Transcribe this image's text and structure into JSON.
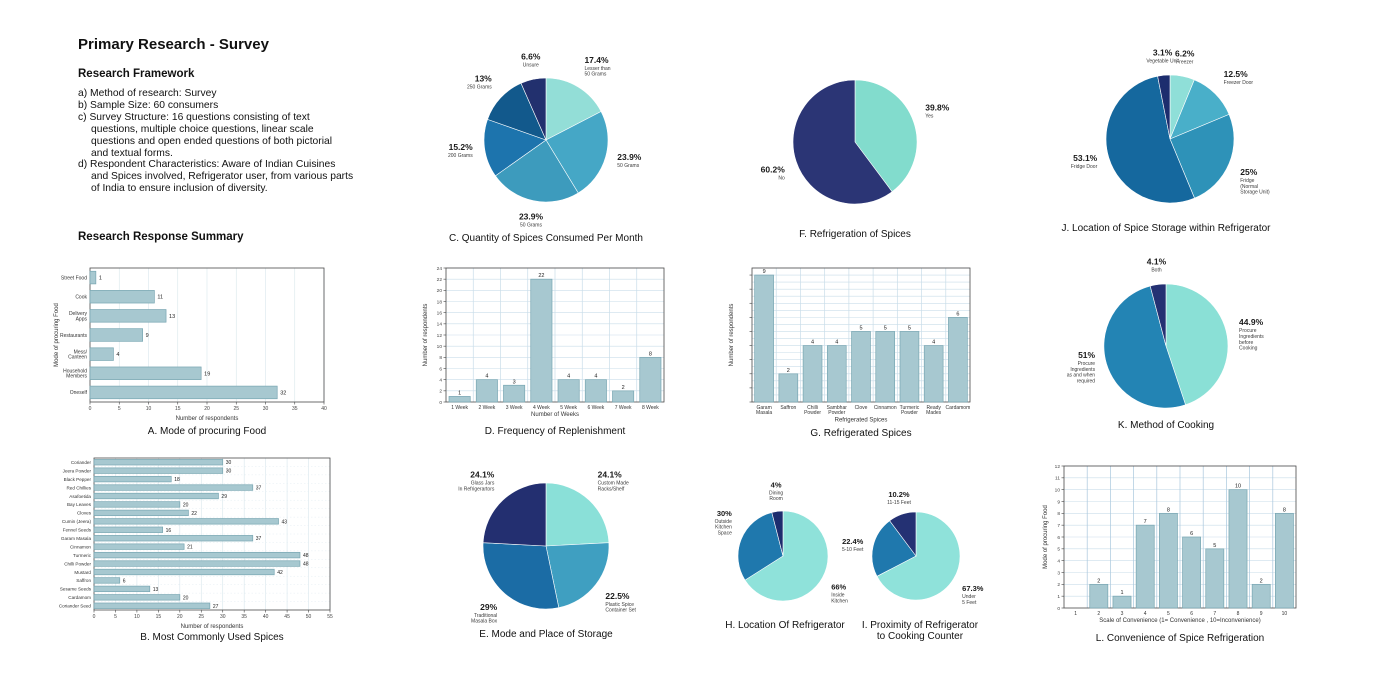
{
  "header": {
    "title": "Primary Research - Survey"
  },
  "framework": {
    "heading": "Research Framework",
    "lines": [
      "a) Method of research: Survey",
      "b) Sample Size: 60 consumers",
      "c) Survey Structure: 16 questions consisting of text",
      "questions, multiple choice questions, linear scale",
      "questions and open ended questions of both pictorial",
      "and textual forms.",
      "d) Respondent Characteristics: Aware of Indian Cuisines",
      "and Spices involved, Refrigerator user, from various parts",
      "of India to ensure inclusion of diversity."
    ]
  },
  "summary": {
    "heading": "Research Response Summary"
  },
  "palette": {
    "bar_fill": "#a7c8d0",
    "bar_stroke": "#78a6b2",
    "grid": "#c9dde9",
    "grid_strong": "#a9c7dd",
    "mint": "#8fdfd6",
    "teal": "#45a7c6",
    "blue": "#1d74ad",
    "navy": "#22306e"
  },
  "chart_data": [
    {
      "id": "C",
      "type": "pie",
      "title": "C. Quantity of Spices Consumed Per Month",
      "slices": [
        {
          "pct": 17.4,
          "pct_label": "17.4%",
          "label": "Lesser than\n50 Grams",
          "color": "#93ded7"
        },
        {
          "pct": 23.9,
          "pct_label": "23.9%",
          "label": "50 Grams",
          "color": "#45a7c6"
        },
        {
          "pct": 23.9,
          "pct_label": "23.9%",
          "label": "50 Grams",
          "color": "#3d9bbd"
        },
        {
          "pct": 15.2,
          "pct_label": "15.2%",
          "label": "200 Grams",
          "color": "#1d74ad"
        },
        {
          "pct": 13,
          "pct_label": "13%",
          "label": "250 Grams",
          "color": "#12598c"
        },
        {
          "pct": 6.6,
          "pct_label": "6.6%",
          "label": "Unsure",
          "color": "#22306e"
        }
      ]
    },
    {
      "id": "F",
      "type": "pie",
      "title": "F. Refrigeration of Spices",
      "slices": [
        {
          "pct": 39.8,
          "pct_label": "39.8%",
          "label": "Yes",
          "color": "#82dccd"
        },
        {
          "pct": 60.2,
          "pct_label": "60.2%",
          "label": "No",
          "color": "#2b3575"
        }
      ]
    },
    {
      "id": "J",
      "type": "pie",
      "title": "J. Location of Spice Storage within Refrigerator",
      "slices": [
        {
          "pct": 6.2,
          "pct_label": "6.2%",
          "label": "Freezer",
          "color": "#8fdfd8"
        },
        {
          "pct": 12.5,
          "pct_label": "12.5%",
          "label": "Freezer Door",
          "color": "#49afc9"
        },
        {
          "pct": 25,
          "pct_label": "25%",
          "label": "Fridge\n(Normal\nStorage Unit)",
          "color": "#2e92b8"
        },
        {
          "pct": 53.1,
          "pct_label": "53.1%",
          "label": "Fridge Door",
          "color": "#15689e"
        },
        {
          "pct": 3.1,
          "pct_label": "3.1%",
          "label": "Vegetable Unit",
          "color": "#1d2d6e"
        }
      ]
    },
    {
      "id": "K",
      "type": "pie",
      "title": "K. Method of Cooking",
      "slices": [
        {
          "pct": 44.9,
          "pct_label": "44.9%",
          "label": "Procure\nIngredients\nbefore\nCooking",
          "color": "#8ae0d6"
        },
        {
          "pct": 51,
          "pct_label": "51%",
          "label": "Procure\nIngredients\nas and when\nrequired",
          "color": "#2384b4"
        },
        {
          "pct": 4.1,
          "pct_label": "4.1%",
          "label": "Both",
          "color": "#243173"
        }
      ]
    },
    {
      "id": "E",
      "type": "pie",
      "title": "E. Mode and Place of Storage",
      "slices": [
        {
          "pct": 24.1,
          "pct_label": "24.1%",
          "label": "Custom Made\nRacks/Shelf",
          "color": "#8ae0d8"
        },
        {
          "pct": 22.5,
          "pct_label": "22.5%",
          "label": "Plastic Spice\nContainer Set",
          "color": "#3f9fc1"
        },
        {
          "pct": 29,
          "pct_label": "29%",
          "label": "Traditional\nMasala Box",
          "color": "#1b6ca5"
        },
        {
          "pct": 24.1,
          "pct_label": "24.1%",
          "label": "Glass Jars\nIn Refrigerartors",
          "color": "#232f70"
        }
      ]
    },
    {
      "id": "H",
      "type": "pie",
      "title": "H. Location Of Refrigerator",
      "slices": [
        {
          "pct": 66,
          "pct_label": "66%",
          "label": "Inside\nKitchen",
          "color": "#8fe2da"
        },
        {
          "pct": 30,
          "pct_label": "30%",
          "label": "Outside\nKitchen\nSpace",
          "color": "#1f78ad"
        },
        {
          "pct": 4,
          "pct_label": "4%",
          "label": "Dining\nRoom",
          "color": "#1d2d6e"
        }
      ]
    },
    {
      "id": "I",
      "type": "pie",
      "title": "I. Proximity of Refrigerator\nto Cooking Counter",
      "slices": [
        {
          "pct": 67.3,
          "pct_label": "67.3%",
          "label": "Under\n5 Feet",
          "color": "#8fe2da"
        },
        {
          "pct": 22.4,
          "pct_label": "22.4%",
          "label": "5-10 Feet",
          "color": "#1f78ad"
        },
        {
          "pct": 10.2,
          "pct_label": "10.2%",
          "label": "11-15 Feet",
          "color": "#243173"
        }
      ]
    },
    {
      "id": "A",
      "type": "hbar",
      "title": "A. Mode of procuring Food",
      "categories": [
        "Street Food",
        "Cook",
        "Delivery\nApps",
        "Restaurants",
        "Mess/\nCanteen",
        "Household\nMembers",
        "Oneself"
      ],
      "values": [
        1,
        11,
        13,
        9,
        4,
        19,
        32
      ],
      "xlabel": "Number of respondents",
      "ylabel": "Mode of procuring Food",
      "xlim": [
        0,
        40
      ],
      "xtick": 5
    },
    {
      "id": "B",
      "type": "hbar",
      "title": "B. Most Commonly Used Spices",
      "categories": [
        "Coriander",
        "Jeera Powder",
        "Black Pepper",
        "Red Chillies",
        "Asafoetida",
        "Bay Leaves",
        "Cloves",
        "Cumin (Jeera)",
        "Fennel Seeds",
        "Garam Masala",
        "Cinnamon",
        "Turmeric",
        "Chilli Powder",
        "Mustard",
        "Saffron",
        "Sesame Seeds",
        "Cardamom",
        "Coriander Seed"
      ],
      "values": [
        30,
        30,
        18,
        37,
        29,
        20,
        22,
        43,
        16,
        37,
        21,
        48,
        48,
        42,
        6,
        13,
        20,
        27
      ],
      "xlabel": "Number of respondents",
      "ylabel": "",
      "xlim": [
        0,
        55
      ],
      "xtick": 5
    },
    {
      "id": "D",
      "type": "vbar",
      "title": "D. Frequency of Replenishment",
      "categories": [
        "1 Week",
        "2 Week",
        "3 Week",
        "4 Week",
        "5 Week",
        "6 Week",
        "7 Week",
        "8 Week"
      ],
      "values": [
        1,
        4,
        3,
        22,
        4,
        4,
        2,
        8
      ],
      "xlabel": "Number of Weeks",
      "ylabel": "Number of respondents",
      "ylim": [
        0,
        24
      ],
      "ytick": 2,
      "ygrid": 2,
      "show_ytick_labels": true
    },
    {
      "id": "G",
      "type": "vbar",
      "title": "G. Refrigerated Spices",
      "categories": [
        "Garam\nMasala",
        "Saffron",
        "Chilli\nPowder",
        "Sambhar\nPowder",
        "Clove",
        "Cinnamon",
        "Turmeric\nPowder",
        "Ready\nMades",
        "Cardamom"
      ],
      "values": [
        9,
        2,
        4,
        4,
        5,
        5,
        5,
        4,
        6
      ],
      "xlabel": "Refrigerated Spices",
      "ylabel": "Number of respondents",
      "ylim": [
        0,
        9.5
      ],
      "ytick": 1,
      "ygrid": 0.5,
      "show_ytick_labels": false
    },
    {
      "id": "L",
      "type": "vbar",
      "title": "L. Convenience of Spice Refrigeration",
      "categories": [
        "1",
        "2",
        "3",
        "4",
        "5",
        "6",
        "7",
        "8",
        "9",
        "10"
      ],
      "values": [
        0,
        2,
        1,
        7,
        8,
        6,
        5,
        10,
        2,
        8
      ],
      "xlabel": "Scale of Convenience (1= Convenience , 10=Inconvenience)",
      "ylabel": "Mode of procuring Food",
      "ylim": [
        0,
        12
      ],
      "ytick": 1,
      "ygrid": 1,
      "show_ytick_labels": true
    }
  ]
}
